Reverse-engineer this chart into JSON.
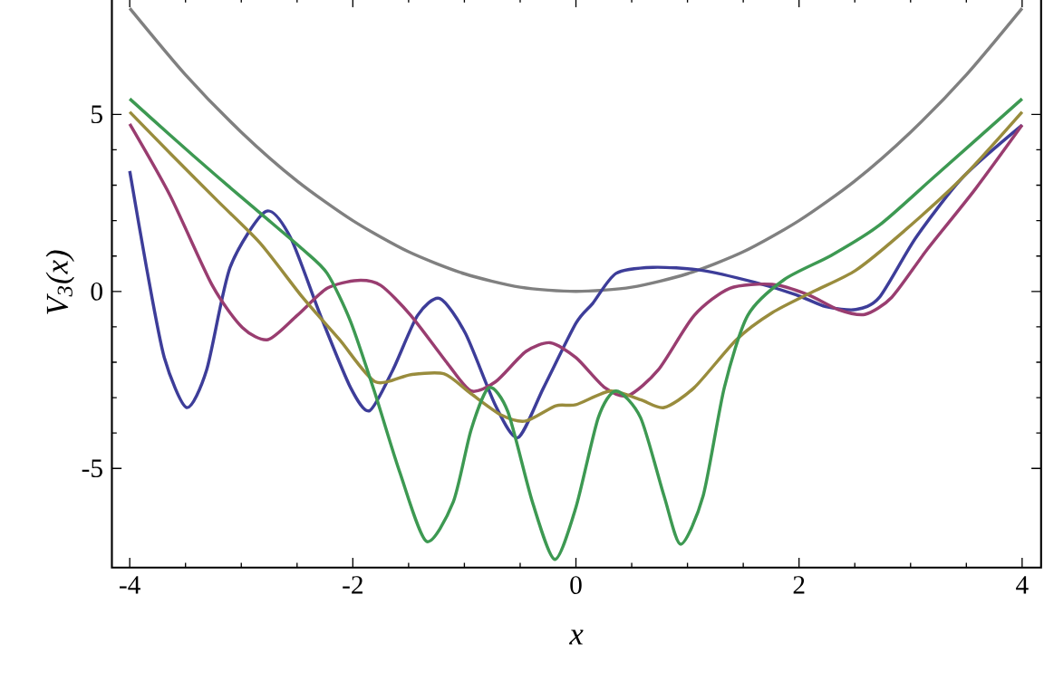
{
  "chart_data": {
    "type": "line",
    "xlabel": "x",
    "ylabel": "V$_{3}$(x)",
    "xlim": [
      -4.16,
      4.17
    ],
    "ylim": [
      -7.8,
      8.3
    ],
    "xticks": [
      -4,
      -2,
      0,
      2,
      4
    ],
    "yticks": [
      -5,
      0,
      5
    ],
    "marker": "none",
    "line_style": "solid",
    "series": [
      {
        "color": "#808080",
        "x": [
          -4,
          -3.5,
          -3,
          -2.5,
          -2,
          -1.5,
          -1,
          -0.5,
          0,
          0.5,
          1,
          1.5,
          2,
          2.5,
          3,
          3.5,
          4
        ],
        "values": [
          8,
          6.12,
          4.5,
          3.12,
          2,
          1.12,
          0.5,
          0.12,
          0,
          0.12,
          0.5,
          1.12,
          2,
          3.12,
          4.5,
          6.12,
          8
        ]
      },
      {
        "color": "#3d3d99",
        "x": [
          -4,
          -3.85,
          -3.69,
          -3.49,
          -3.31,
          -3.1,
          -2.78,
          -2.56,
          -2.29,
          -2.02,
          -1.85,
          -1.64,
          -1.42,
          -1.22,
          -0.99,
          -0.72,
          -0.52,
          -0.29,
          0,
          0.15,
          0.36,
          0.69,
          1.12,
          1.6,
          1.97,
          2.24,
          2.51,
          2.72,
          3.05,
          3.47,
          4
        ],
        "values": [
          3.4,
          0.68,
          -1.87,
          -3.28,
          -2.21,
          0.68,
          2.26,
          1.53,
          -0.68,
          -2.72,
          -3.37,
          -2.21,
          -0.68,
          -0.2,
          -1.19,
          -3.23,
          -4.13,
          -2.72,
          -0.9,
          -0.34,
          0.51,
          0.68,
          0.6,
          0.26,
          -0.09,
          -0.43,
          -0.51,
          -0.17,
          1.53,
          3.23,
          4.7
        ]
      },
      {
        "color": "#993d70",
        "x": [
          -4,
          -3.64,
          -3.26,
          -2.99,
          -2.76,
          -2.5,
          -2.23,
          -1.96,
          -1.75,
          -1.48,
          -1.15,
          -0.94,
          -0.72,
          -0.45,
          -0.23,
          0,
          0.26,
          0.47,
          0.74,
          1.06,
          1.38,
          1.76,
          2.08,
          2.35,
          2.59,
          2.83,
          3.15,
          3.58,
          4
        ],
        "values": [
          4.73,
          2.72,
          0.17,
          -1.02,
          -1.36,
          -0.68,
          0.09,
          0.31,
          0.17,
          -0.68,
          -2.04,
          -2.81,
          -2.55,
          -1.7,
          -1.45,
          -1.87,
          -2.72,
          -2.94,
          -2.21,
          -0.68,
          0.09,
          0.2,
          -0.09,
          -0.51,
          -0.65,
          -0.17,
          1.19,
          2.89,
          4.7
        ]
      },
      {
        "color": "#998c3d",
        "x": [
          -4,
          -3.64,
          -3.21,
          -2.83,
          -2.45,
          -2.12,
          -1.8,
          -1.48,
          -1.18,
          -0.94,
          -0.67,
          -0.45,
          -0.18,
          0,
          0.31,
          0.58,
          0.79,
          1.06,
          1.44,
          1.76,
          2.13,
          2.51,
          2.94,
          3.47,
          4
        ],
        "values": [
          5.07,
          3.91,
          2.55,
          1.36,
          -0.17,
          -1.36,
          -2.55,
          -2.35,
          -2.33,
          -2.89,
          -3.49,
          -3.66,
          -3.23,
          -3.2,
          -2.81,
          -3.06,
          -3.28,
          -2.72,
          -1.36,
          -0.6,
          0.0,
          0.6,
          1.7,
          3.23,
          5.07
        ]
      },
      {
        "color": "#3d9952",
        "x": [
          -4,
          -3.64,
          -3.21,
          -2.83,
          -2.45,
          -2.23,
          -2.02,
          -1.8,
          -1.58,
          -1.34,
          -1.1,
          -0.94,
          -0.78,
          -0.61,
          -0.39,
          -0.19,
          0,
          0.2,
          0.36,
          0.58,
          0.79,
          0.94,
          1.14,
          1.33,
          1.54,
          1.87,
          2.29,
          2.72,
          3.21,
          4
        ],
        "values": [
          5.44,
          4.42,
          3.23,
          2.21,
          1.19,
          0.51,
          -0.85,
          -2.89,
          -5.1,
          -7.06,
          -5.95,
          -3.91,
          -2.72,
          -3.4,
          -5.95,
          -7.57,
          -6.1,
          -3.57,
          -2.81,
          -3.57,
          -5.78,
          -7.14,
          -5.78,
          -2.72,
          -0.68,
          0.34,
          1.02,
          1.87,
          3.23,
          5.44
        ]
      }
    ]
  }
}
